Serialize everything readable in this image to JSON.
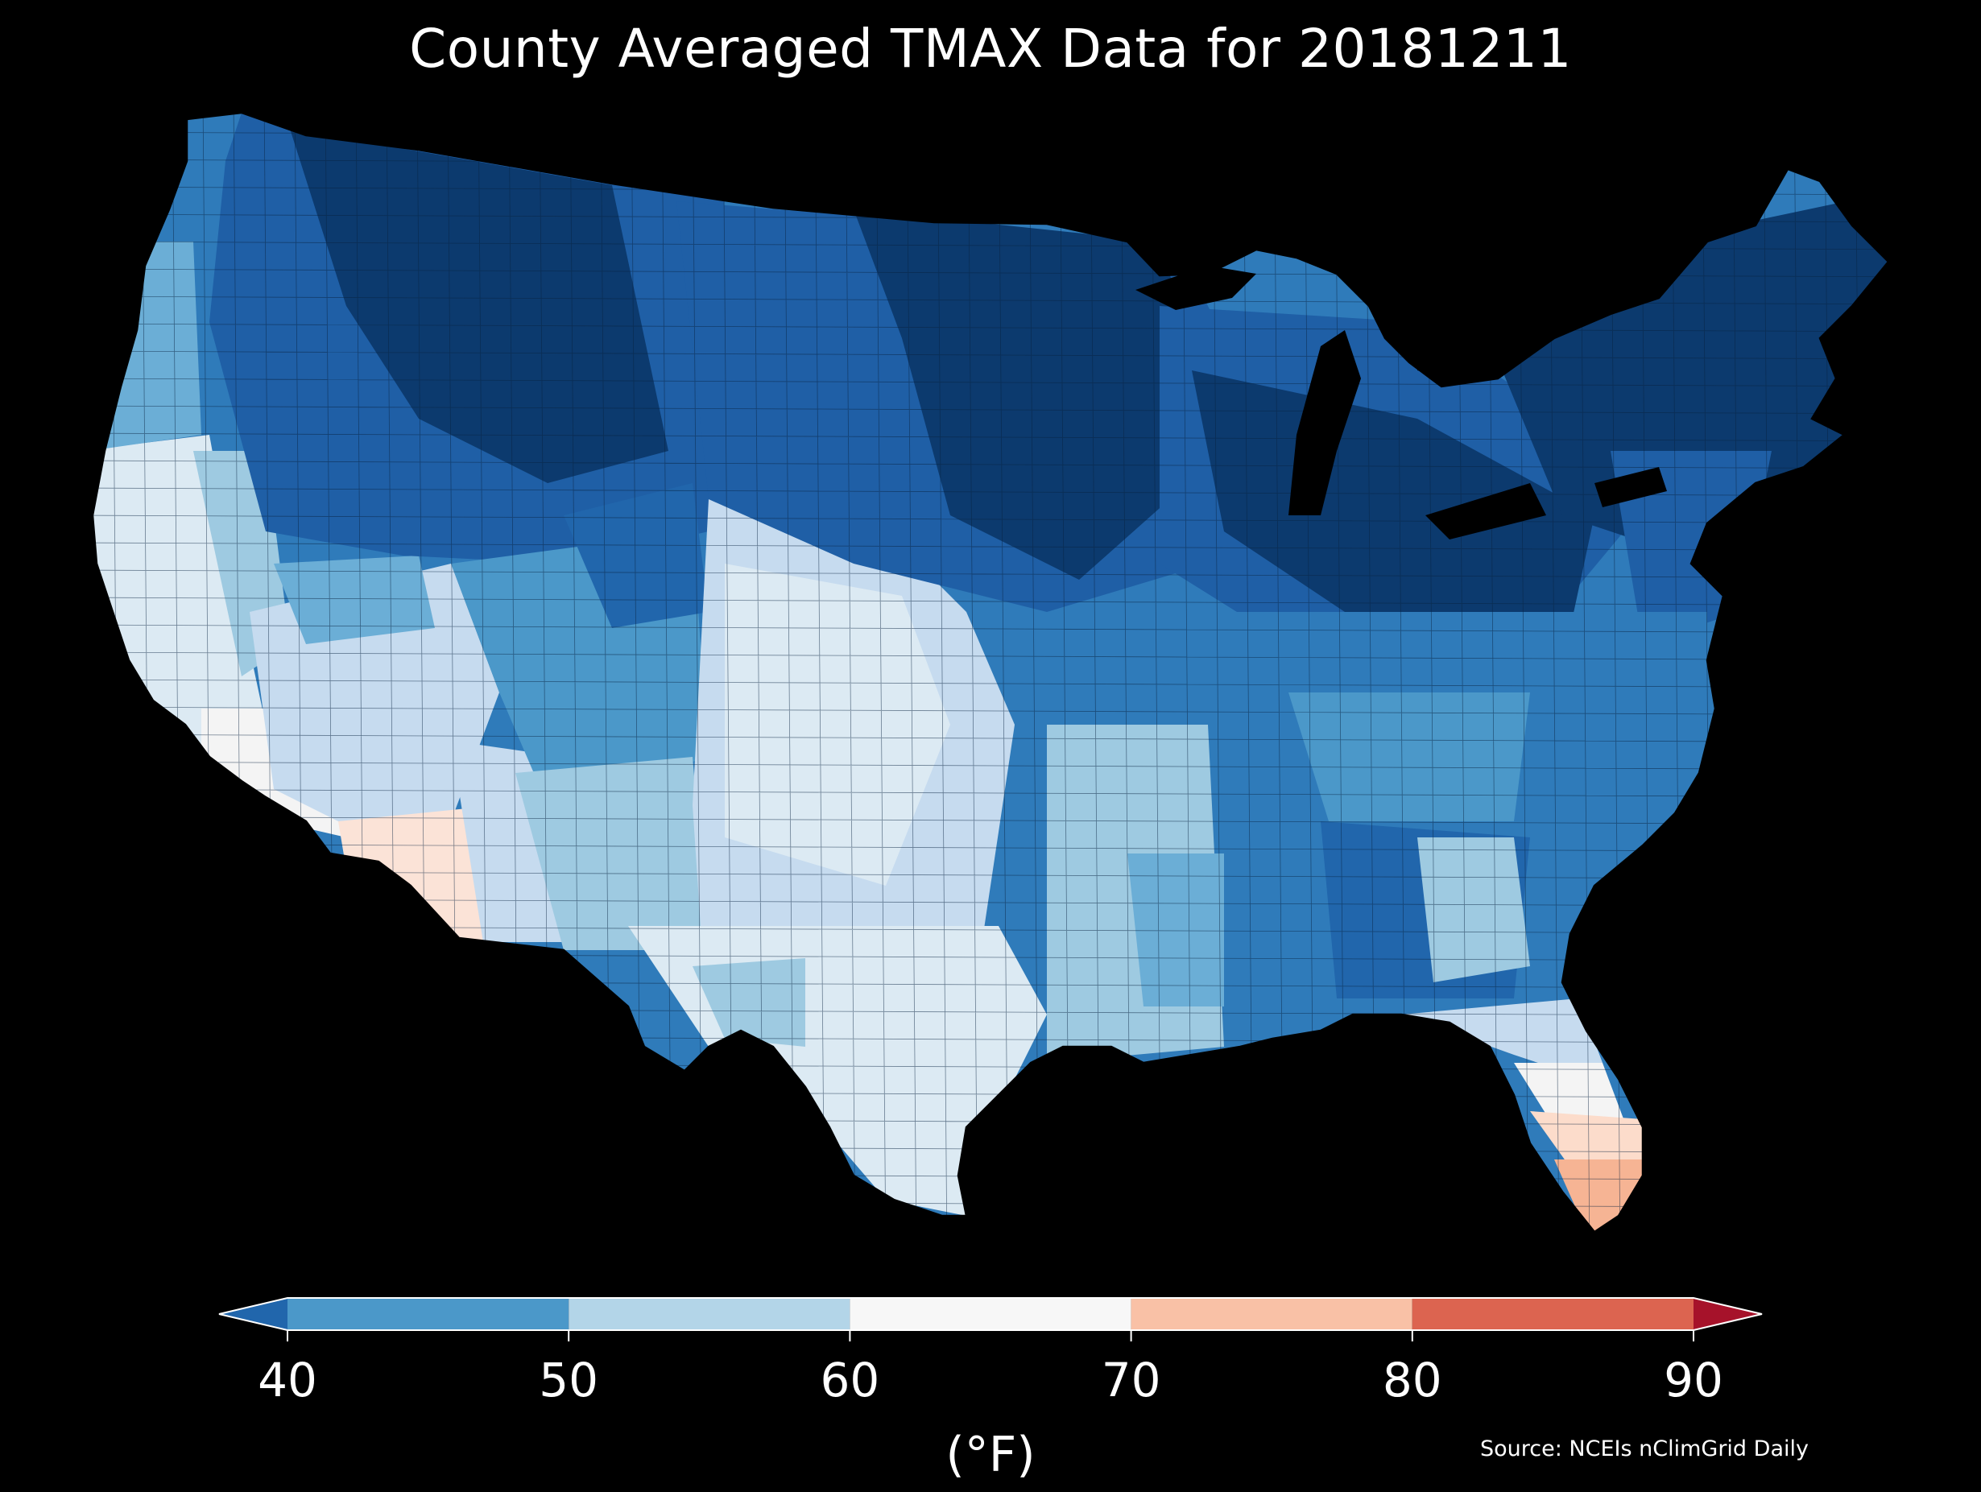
{
  "title": "County Averaged TMAX Data for 20181211",
  "source": "Source: NCEIs nClimGrid Daily",
  "colorbar": {
    "unit": "(°F)",
    "ticks": [
      "40",
      "50",
      "60",
      "70",
      "80",
      "90"
    ],
    "bins": [
      {
        "from": 40,
        "to": 50,
        "color": "#4b98c9"
      },
      {
        "from": 50,
        "to": 60,
        "color": "#b3d5e8"
      },
      {
        "from": 60,
        "to": 70,
        "color": "#f7f7f7"
      },
      {
        "from": 70,
        "to": 80,
        "color": "#f9c1a6"
      },
      {
        "from": 80,
        "to": 90,
        "color": "#dc6450"
      }
    ],
    "extend_low_color": "#2166ac",
    "extend_high_color": "#a6122a"
  },
  "map": {
    "background": "#000000",
    "region": "contiguous United States counties",
    "variable": "TMAX",
    "date": "20181211",
    "colors": {
      "coldest": "#0c3a6e",
      "cold": "#1f5fa6",
      "cool": "#4b98c9",
      "mild": "#9ecae1",
      "pale": "#dceaf3",
      "neutral": "#f4f4f4",
      "warm": "#fcdccb",
      "warmer": "#f6b494"
    }
  }
}
